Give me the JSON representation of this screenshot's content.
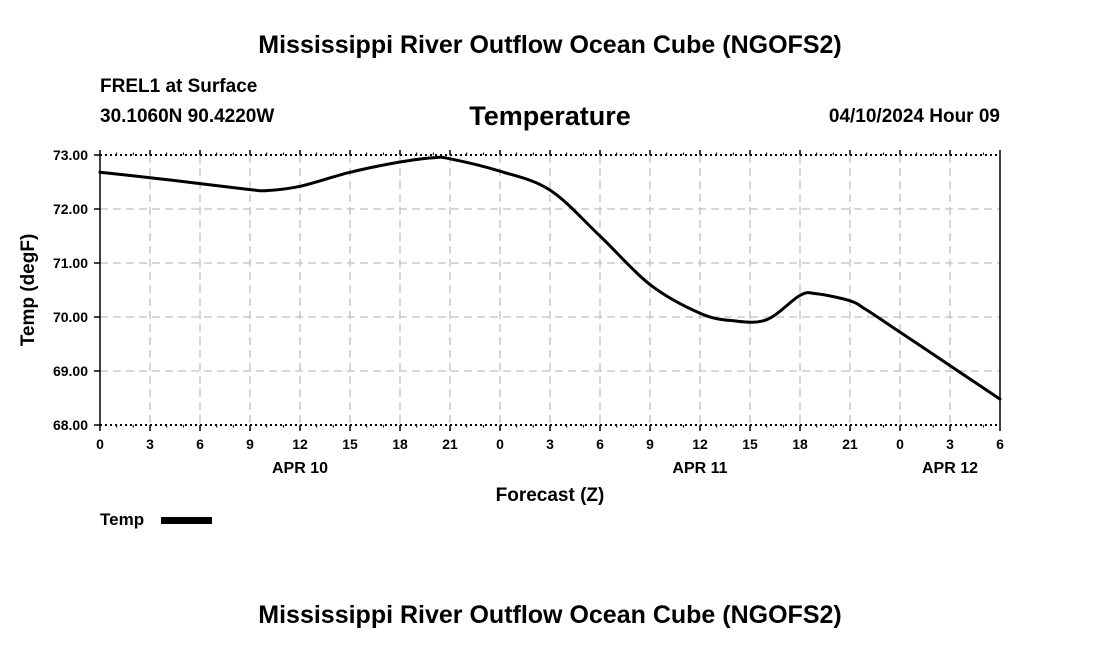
{
  "header": {
    "title": "Mississippi River Outflow Ocean Cube (NGOFS2)",
    "station": "FREL1 at Surface",
    "coords": "30.1060N  90.4220W",
    "datetime": "04/10/2024 Hour 09"
  },
  "footer": {
    "title": "Mississippi River Outflow Ocean Cube (NGOFS2)"
  },
  "legend": {
    "label": "Temp"
  },
  "colors": {
    "line": "#000000",
    "grid": "#c0c0c0",
    "background": "#ffffff"
  },
  "chart_data": {
    "type": "line",
    "title": "Temperature",
    "xlabel": "Forecast (Z)",
    "ylabel": "Temp (degF)",
    "ylim": [
      68.0,
      73.0
    ],
    "xlim": [
      0,
      54
    ],
    "yticks": [
      "68.00",
      "69.00",
      "70.00",
      "71.00",
      "72.00",
      "73.00"
    ],
    "xticks": [
      "0",
      "3",
      "6",
      "9",
      "12",
      "15",
      "18",
      "21",
      "0",
      "3",
      "6",
      "9",
      "12",
      "15",
      "18",
      "21",
      "0",
      "3",
      "6"
    ],
    "date_labels": [
      {
        "label": "APR 10",
        "hour": 12
      },
      {
        "label": "APR 11",
        "hour": 36
      },
      {
        "label": "APR 12",
        "hour": 51
      }
    ],
    "grid": true,
    "series": [
      {
        "name": "Temp",
        "x": [
          0,
          3,
          6,
          9,
          10,
          12,
          15,
          18,
          20,
          21,
          24,
          27,
          30,
          33,
          36,
          38,
          40,
          42,
          43,
          45,
          46,
          48,
          51,
          54
        ],
        "values": [
          72.68,
          72.58,
          72.47,
          72.36,
          72.34,
          72.42,
          72.68,
          72.87,
          72.95,
          72.93,
          72.7,
          72.35,
          71.5,
          70.6,
          70.07,
          69.93,
          69.95,
          70.4,
          70.43,
          70.3,
          70.13,
          69.72,
          69.1,
          68.48
        ]
      }
    ]
  }
}
